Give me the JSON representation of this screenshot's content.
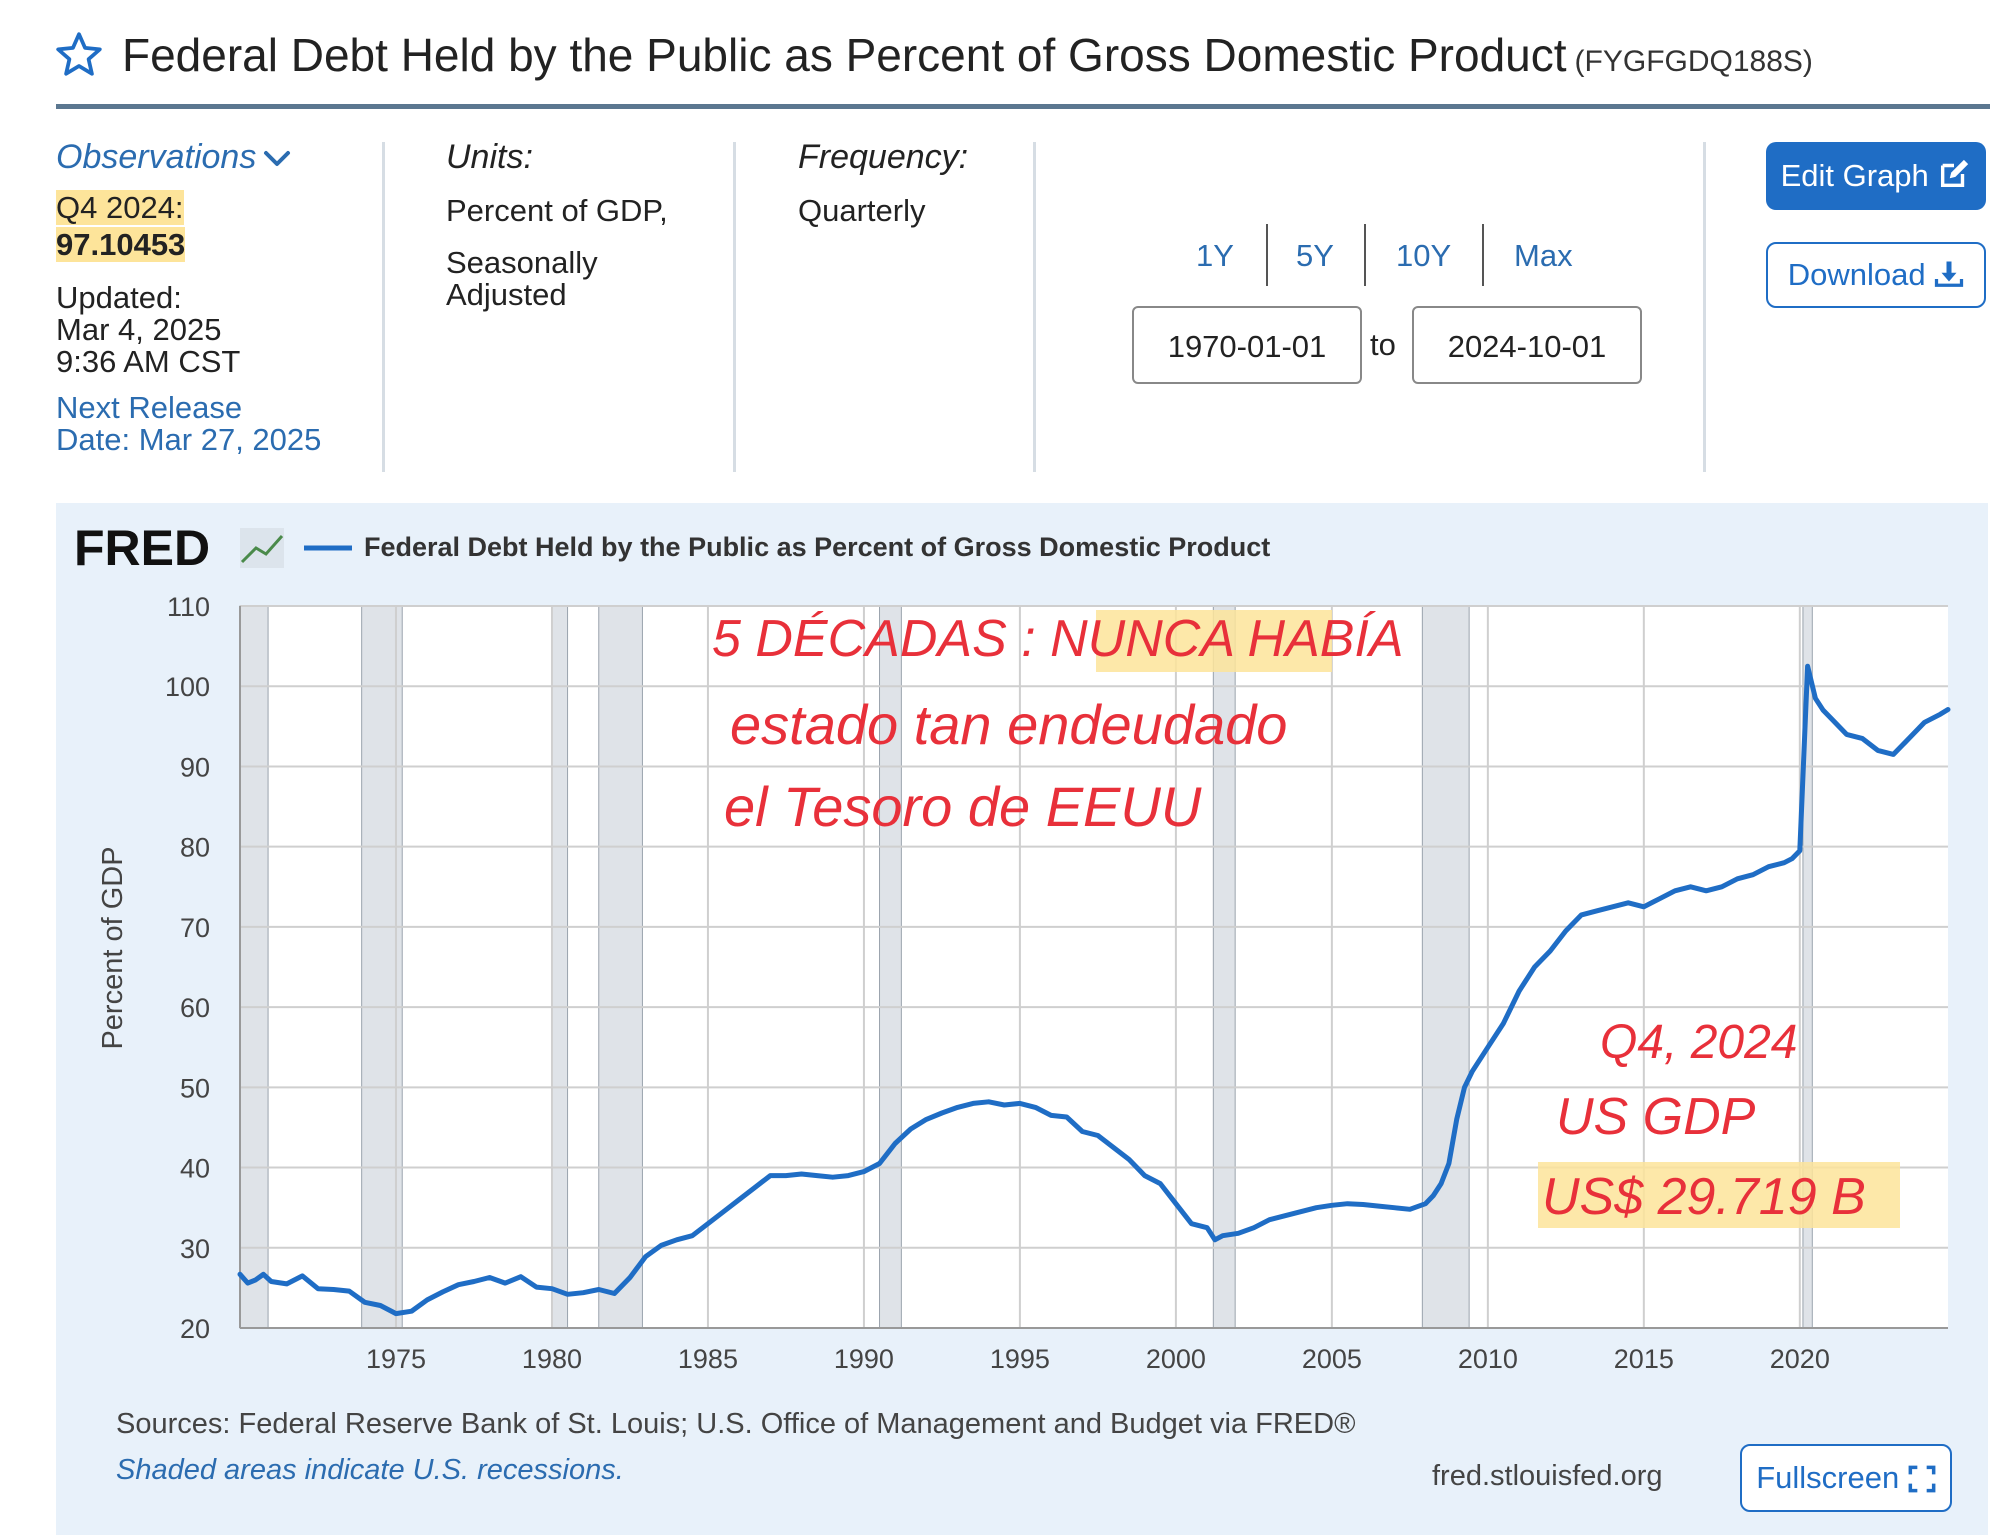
{
  "header": {
    "title": "Federal Debt Held by the Public as Percent of Gross Domestic Product",
    "series_id": "(FYGFGDQ188S)"
  },
  "info": {
    "observations_label": "Observations",
    "obs_date": "Q4 2024:",
    "obs_value": "97.10453",
    "updated_label": "Updated:",
    "updated_date": "Mar 4, 2025",
    "updated_time": "9:36 AM CST",
    "next_release_1": "Next Release",
    "next_release_2": "Date: Mar 27, 2025",
    "units_label": "Units:",
    "units_1": "Percent of GDP,",
    "units_2": "Seasonally",
    "units_3": "Adjusted",
    "frequency_label": "Frequency:",
    "frequency_value": "Quarterly"
  },
  "controls": {
    "periods": [
      "1Y",
      "5Y",
      "10Y",
      "Max"
    ],
    "start_date": "1970-01-01",
    "to_label": "to",
    "end_date": "2024-10-01",
    "edit_graph": "Edit Graph",
    "download": "Download",
    "fullscreen": "Fullscreen"
  },
  "footer": {
    "sources": "Sources: Federal Reserve Bank of St. Louis; U.S. Office of Management and Budget via FRED®",
    "recession_note": "Shaded areas indicate U.S. recessions.",
    "site": "fred.stlouisfed.org"
  },
  "logo_text": "FRED",
  "colors": {
    "accent": "#1f6dc5",
    "line": "#1f6dc5",
    "recession": "#dfe3e8",
    "annotation": "#e8303a",
    "highlight": "#fde49a"
  },
  "chart_data": {
    "type": "line",
    "title": "Federal Debt Held by the Public as Percent of Gross Domestic Product",
    "ylabel": "Percent of GDP",
    "xlabel": "",
    "xlim": [
      1970,
      2024.75
    ],
    "ylim": [
      20,
      110
    ],
    "yticks": [
      20,
      30,
      40,
      50,
      60,
      70,
      80,
      90,
      100,
      110
    ],
    "xticks": [
      1975,
      1980,
      1985,
      1990,
      1995,
      2000,
      2005,
      2010,
      2015,
      2020
    ],
    "grid": true,
    "recessions": [
      [
        1970.0,
        1970.9
      ],
      [
        1973.9,
        1975.2
      ],
      [
        1980.0,
        1980.5
      ],
      [
        1981.5,
        1982.9
      ],
      [
        1990.5,
        1991.2
      ],
      [
        2001.2,
        2001.9
      ],
      [
        2007.9,
        2009.4
      ],
      [
        2020.1,
        2020.4
      ]
    ],
    "series": [
      {
        "name": "Federal Debt Held by the Public as Percent of Gross Domestic Product",
        "x": [
          1970.0,
          1970.25,
          1970.5,
          1970.75,
          1971.0,
          1971.5,
          1972.0,
          1972.5,
          1973.0,
          1973.5,
          1974.0,
          1974.5,
          1975.0,
          1975.5,
          1976.0,
          1976.5,
          1977.0,
          1977.5,
          1978.0,
          1978.5,
          1979.0,
          1979.5,
          1980.0,
          1980.5,
          1981.0,
          1981.5,
          1982.0,
          1982.5,
          1983.0,
          1983.5,
          1984.0,
          1984.5,
          1985.0,
          1985.5,
          1986.0,
          1986.5,
          1987.0,
          1987.5,
          1988.0,
          1988.5,
          1989.0,
          1989.5,
          1990.0,
          1990.5,
          1991.0,
          1991.5,
          1992.0,
          1992.5,
          1993.0,
          1993.5,
          1994.0,
          1994.5,
          1995.0,
          1995.5,
          1996.0,
          1996.5,
          1997.0,
          1997.5,
          1998.0,
          1998.5,
          1999.0,
          1999.5,
          2000.0,
          2000.5,
          2001.0,
          2001.25,
          2001.5,
          2002.0,
          2002.5,
          2003.0,
          2003.5,
          2004.0,
          2004.5,
          2005.0,
          2005.5,
          2006.0,
          2006.5,
          2007.0,
          2007.5,
          2008.0,
          2008.25,
          2008.5,
          2008.75,
          2009.0,
          2009.25,
          2009.5,
          2010.0,
          2010.5,
          2011.0,
          2011.5,
          2012.0,
          2012.5,
          2013.0,
          2013.5,
          2014.0,
          2014.5,
          2015.0,
          2015.5,
          2016.0,
          2016.5,
          2017.0,
          2017.5,
          2018.0,
          2018.5,
          2019.0,
          2019.5,
          2019.75,
          2020.0,
          2020.25,
          2020.5,
          2020.75,
          2021.0,
          2021.5,
          2022.0,
          2022.5,
          2023.0,
          2023.5,
          2024.0,
          2024.5,
          2024.75
        ],
        "values": [
          26.7,
          25.6,
          26.0,
          26.7,
          25.8,
          25.5,
          26.5,
          24.9,
          24.8,
          24.6,
          23.2,
          22.8,
          21.8,
          22.1,
          23.5,
          24.5,
          25.4,
          25.8,
          26.3,
          25.6,
          26.4,
          25.1,
          24.9,
          24.2,
          24.4,
          24.8,
          24.3,
          26.3,
          28.9,
          30.3,
          31.0,
          31.5,
          33.0,
          34.5,
          36.0,
          37.5,
          39.0,
          39.0,
          39.2,
          39.0,
          38.8,
          39.0,
          39.5,
          40.5,
          43.0,
          44.8,
          46.0,
          46.8,
          47.5,
          48.0,
          48.2,
          47.8,
          48.0,
          47.5,
          46.5,
          46.3,
          44.5,
          44.0,
          42.5,
          41.0,
          39.0,
          38.0,
          35.5,
          33.0,
          32.5,
          31.0,
          31.5,
          31.8,
          32.5,
          33.5,
          34.0,
          34.5,
          35.0,
          35.3,
          35.5,
          35.4,
          35.2,
          35.0,
          34.8,
          35.5,
          36.5,
          38.0,
          40.5,
          46.0,
          50.0,
          52.0,
          55.0,
          58.0,
          62.0,
          65.0,
          67.0,
          69.5,
          71.5,
          72.0,
          72.5,
          73.0,
          72.5,
          73.5,
          74.5,
          75.0,
          74.5,
          75.0,
          76.0,
          76.5,
          77.5,
          78.0,
          78.5,
          79.5,
          102.5,
          98.5,
          97.0,
          96.0,
          94.0,
          93.5,
          92.0,
          91.5,
          93.5,
          95.5,
          96.5,
          97.1
        ]
      }
    ],
    "annotations": [
      "5 DÉCADAS : NUNCA HABÍA",
      "estado tan endeudado",
      "el Tesoro de EEUU",
      "Q4, 2024",
      "US GDP",
      "US$ 29.719 B"
    ]
  }
}
